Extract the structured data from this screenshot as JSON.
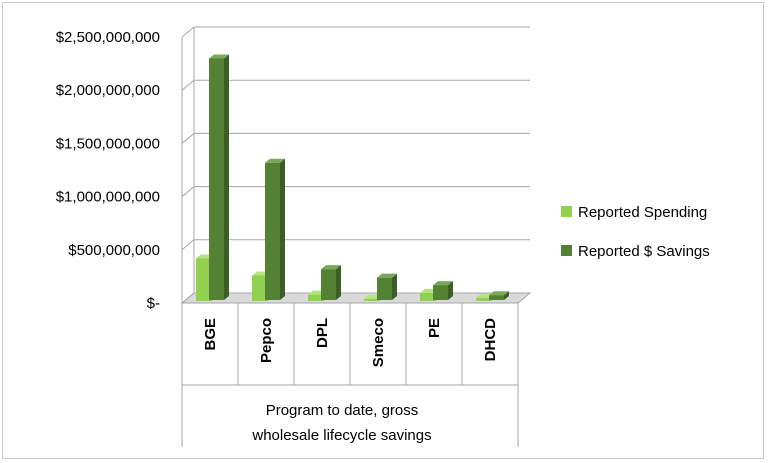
{
  "chart_data": {
    "type": "bar",
    "categories": [
      "BGE",
      "Pepco",
      "DPL",
      "Smeco",
      "PE",
      "DHCD"
    ],
    "series": [
      {
        "name": "Reported Spending",
        "values": [
          400000000,
          240000000,
          60000000,
          20000000,
          75000000,
          30000000
        ]
      },
      {
        "name": "Reported $ Savings",
        "values": [
          2270000000,
          1290000000,
          290000000,
          210000000,
          140000000,
          45000000
        ]
      }
    ],
    "y_ticks": [
      "$2,500,000,000",
      "$2,000,000,000",
      "$1,500,000,000",
      "$1,000,000,000",
      "$500,000,000",
      "$-"
    ],
    "y_tick_values": [
      2500000000,
      2000000000,
      1500000000,
      1000000000,
      500000000,
      0
    ],
    "xlabel_lines": [
      "Program to date, gross",
      "wholesale lifecycle savings"
    ],
    "ylabel": "",
    "title": "",
    "ylim": [
      0,
      2500000000
    ],
    "grid": true,
    "legend_position": "right",
    "colors": {
      "spending_front": "#92d050",
      "spending_top": "#b4e383",
      "spending_side": "#6fa83a",
      "savings_front": "#548235",
      "savings_top": "#7aa85a",
      "savings_side": "#3b5e24",
      "grid": "#a6a6a6",
      "floor": "#d9d9d9"
    }
  }
}
